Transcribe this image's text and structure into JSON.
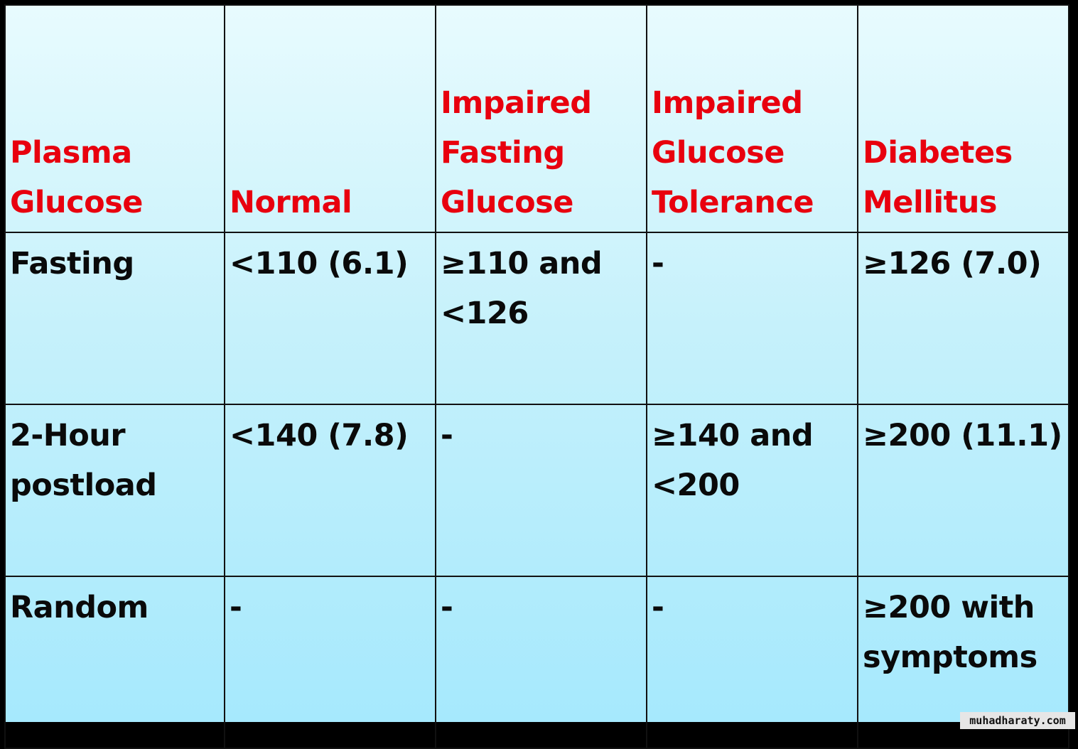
{
  "table": {
    "headers": [
      [
        "Plasma",
        "Glucose"
      ],
      [
        "Normal"
      ],
      [
        "Impaired",
        "Fasting",
        "Glucose"
      ],
      [
        "Impaired",
        "Glucose",
        "Tolerance"
      ],
      [
        "Diabetes",
        "Mellitus"
      ]
    ],
    "rows": [
      [
        [
          "Fasting"
        ],
        [
          "<110 (6.1)"
        ],
        [
          "≥110 and",
          "<126"
        ],
        [
          "-"
        ],
        [
          "≥126 (7.0)"
        ]
      ],
      [
        [
          "2-Hour",
          "postload"
        ],
        [
          "<140 (7.8)"
        ],
        [
          "-"
        ],
        [
          "≥140 and",
          "<200"
        ],
        [
          "≥200 (11.1)"
        ]
      ],
      [
        [
          "Random"
        ],
        [
          "-"
        ],
        [
          "-"
        ],
        [
          "-"
        ],
        [
          "≥200 with",
          "symptoms"
        ]
      ]
    ]
  },
  "watermark": "muhadharaty.com",
  "colors": {
    "header_text": "#e8000e",
    "body_text": "#0a0a0a",
    "background_top": "#e8fbfe",
    "background_bottom": "#a6e9fd",
    "frame": "#000000"
  }
}
